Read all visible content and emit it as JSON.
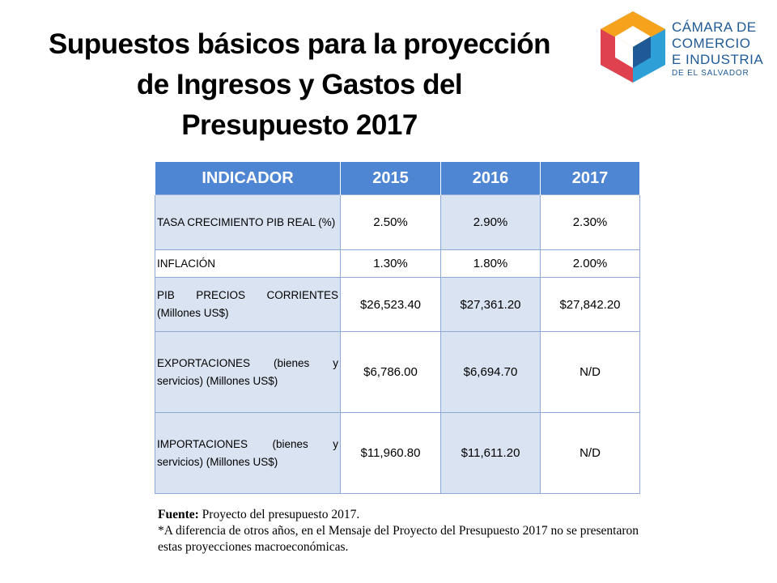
{
  "title": {
    "line1": "Supuestos básicos para la proyección",
    "line2": "de Ingresos y Gastos del",
    "line3": "Presupuesto 2017"
  },
  "logo": {
    "line1": "CÁMARA DE",
    "line2": "COMERCIO",
    "line3": "E INDUSTRIA",
    "line4": "DE EL SALVADOR",
    "colors": [
      "#f6a21c",
      "#e0414f",
      "#2f9fd8",
      "#1f5a96"
    ]
  },
  "table": {
    "headers": [
      "INDICADOR",
      "2015",
      "2016",
      "2017"
    ],
    "rows": [
      {
        "indicator": "TASA CRECIMIENTO PIB REAL (%)",
        "v2015": "2.50%",
        "v2016": "2.90%",
        "v2017": "2.30%"
      },
      {
        "indicator": "INFLACIÓN",
        "v2015": "1.30%",
        "v2016": "1.80%",
        "v2017": "2.00%"
      },
      {
        "indicator": "PIB PRECIOS CORRIENTES (Millones US$)",
        "v2015": "$26,523.40",
        "v2016": "$27,361.20",
        "v2017": "$27,842.20"
      },
      {
        "indicator": "EXPORTACIONES (bienes y servicios) (Millones US$)",
        "v2015": "$6,786.00",
        "v2016": "$6,694.70",
        "v2017": "N/D"
      },
      {
        "indicator": "IMPORTACIONES (bienes y servicios) (Millones US$)",
        "v2015": "$11,960.80",
        "v2016": "$11,611.20",
        "v2017": "N/D"
      }
    ],
    "colors": {
      "header": "#4f86d3",
      "shade": "#dae3f1",
      "border": "#8eaad4"
    }
  },
  "note": {
    "source_label": "Fuente:",
    "source_text": " Proyecto del presupuesto 2017.",
    "footnote": "*A diferencia de otros años, en el Mensaje del Proyecto del Presupuesto 2017 no se presentaron estas proyecciones macroeconómicas."
  }
}
